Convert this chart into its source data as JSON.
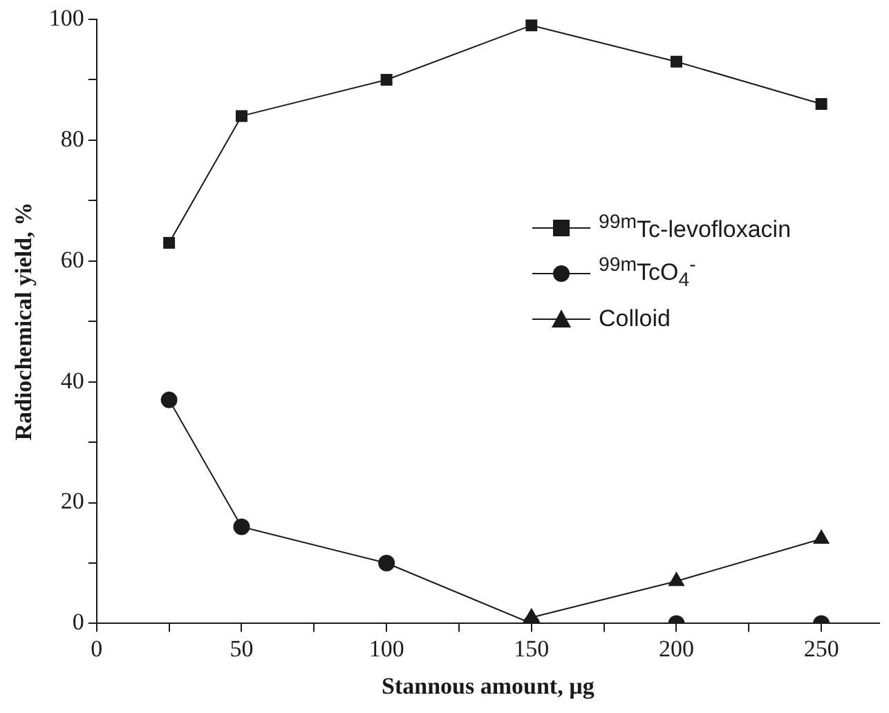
{
  "chart_data": {
    "type": "line",
    "xlabel": "Stannous amount, µg",
    "ylabel": "Radiochemical yield, %",
    "x": [
      25,
      50,
      100,
      150,
      200,
      250
    ],
    "xlim": [
      0,
      270
    ],
    "xticks": [
      0,
      {
        "value": 25,
        "label": null
      },
      50,
      {
        "value": 75,
        "label": null
      },
      100,
      {
        "value": 125,
        "label": null
      },
      150,
      {
        "value": 175,
        "label": null
      },
      200,
      {
        "value": 225,
        "label": null
      },
      250
    ],
    "ylim": [
      0,
      100
    ],
    "yticks": [
      0,
      {
        "value": 10,
        "label": null
      },
      20,
      {
        "value": 30,
        "label": null
      },
      40,
      {
        "value": 50,
        "label": null
      },
      60,
      {
        "value": 70,
        "label": null
      },
      80,
      {
        "value": 90,
        "label": null
      },
      100
    ],
    "series": [
      {
        "name": "$^{99m}$Tc-levofloxacin",
        "color": "#1a1a1a",
        "marker": "square",
        "values": [
          63,
          84,
          90,
          99,
          93,
          86
        ]
      },
      {
        "name": "$^{99m}$TcO$_{4}$$^{-}$",
        "color": "#1a1a1a",
        "marker": "circle",
        "values": [
          37,
          16,
          10,
          0,
          0,
          0
        ]
      },
      {
        "name": "Colloid",
        "color": "#1a1a1a",
        "marker": "triangle",
        "values": [
          null,
          null,
          null,
          1,
          7,
          14
        ]
      }
    ],
    "legend": "right",
    "grid": false,
    "line_style": "solid"
  }
}
